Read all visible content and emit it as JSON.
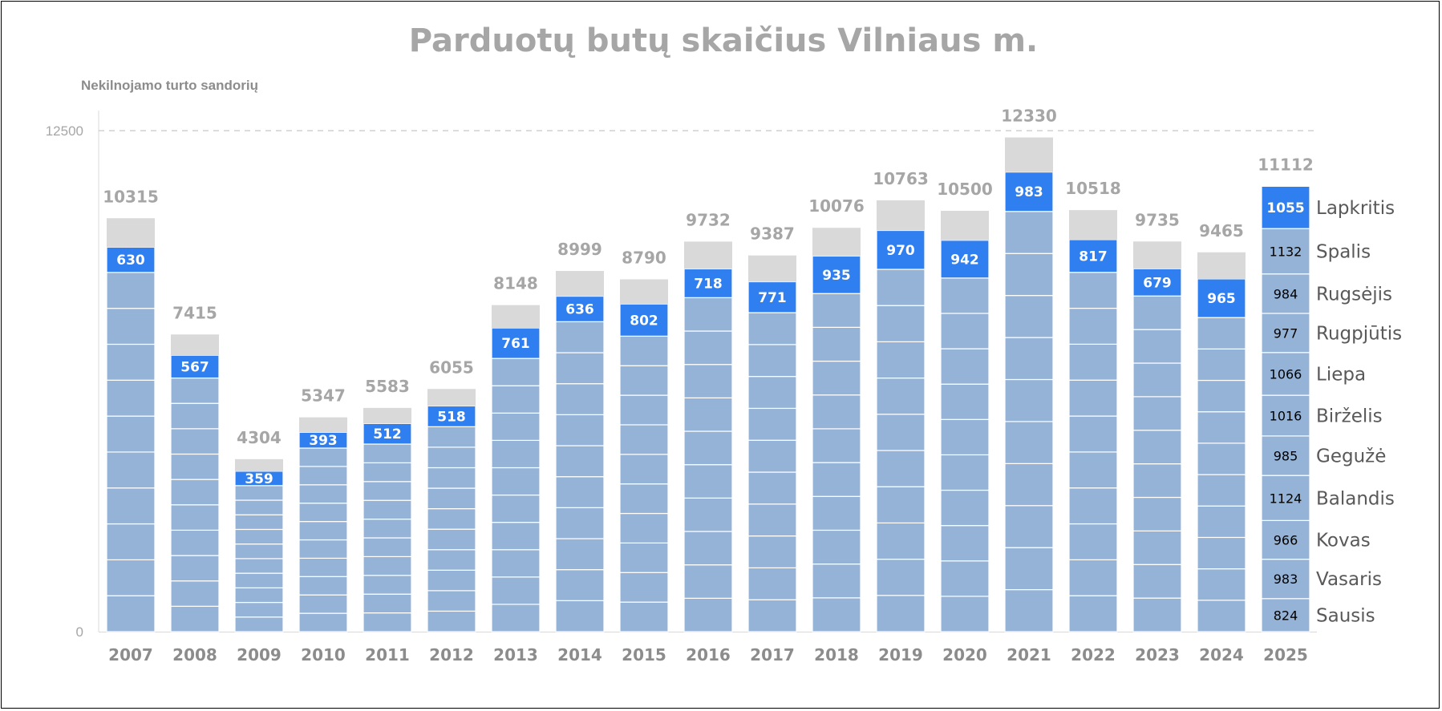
{
  "colors": {
    "segment": "#95b3d7",
    "highlight": "#2f7ff0",
    "remainder": "#d9d9d9",
    "segment_border": "#ffffff"
  },
  "chart_data": {
    "type": "bar",
    "stacked": true,
    "title": "Parduotų butų skaičius Vilniaus m.",
    "ylabel": "Nekilnojamo turto sandorių",
    "xlabel": "",
    "ylim": [
      0,
      12500
    ],
    "y_ticks": [
      0,
      12500
    ],
    "reference_line": 12500,
    "categories": [
      "2007",
      "2008",
      "2009",
      "2010",
      "2011",
      "2012",
      "2013",
      "2014",
      "2015",
      "2016",
      "2017",
      "2018",
      "2019",
      "2020",
      "2021",
      "2022",
      "2023",
      "2024",
      "2025"
    ],
    "totals": [
      10315,
      7415,
      4304,
      5347,
      5583,
      6055,
      8148,
      8999,
      8790,
      9732,
      9387,
      10076,
      10763,
      10500,
      12330,
      10518,
      9735,
      9465,
      11112
    ],
    "highlight_values": [
      630,
      567,
      359,
      393,
      512,
      518,
      761,
      636,
      802,
      718,
      771,
      935,
      970,
      942,
      983,
      817,
      679,
      965,
      1055
    ],
    "highlight_month": "Lapkritis",
    "monthly_2025": [
      {
        "month": "Sausis",
        "value": 824
      },
      {
        "month": "Vasaris",
        "value": 983
      },
      {
        "month": "Kovas",
        "value": 966
      },
      {
        "month": "Balandis",
        "value": 1124
      },
      {
        "month": "Gegužė",
        "value": 985
      },
      {
        "month": "Birželis",
        "value": 1016
      },
      {
        "month": "Liepa",
        "value": 1066
      },
      {
        "month": "Rugpjūtis",
        "value": 977
      },
      {
        "month": "Rugsėjis",
        "value": 984
      },
      {
        "month": "Spalis",
        "value": 1132
      },
      {
        "month": "Lapkritis",
        "value": 1055
      }
    ]
  }
}
